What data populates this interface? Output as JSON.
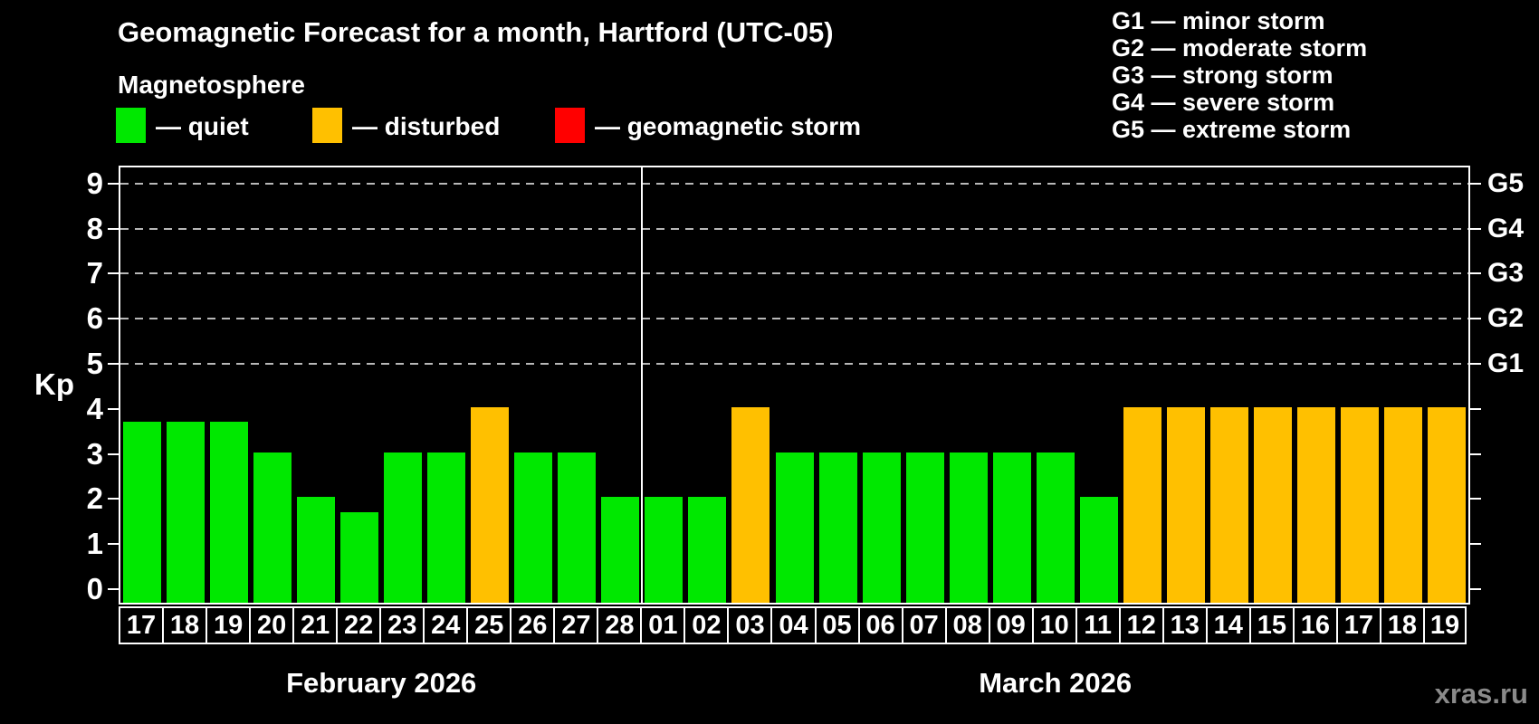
{
  "title": "Geomagnetic Forecast for a month, Hartford (UTC-05)",
  "subtitle": "Magnetosphere",
  "legend": {
    "items": [
      {
        "name": "quiet",
        "label": "— quiet",
        "color": "#00e800"
      },
      {
        "name": "disturbed",
        "label": "— disturbed",
        "color": "#ffc000"
      },
      {
        "name": "geomagnetic-storm",
        "label": "— geomagnetic storm",
        "color": "#ff0000"
      }
    ]
  },
  "g_scale_legend": {
    "lines": [
      "G1 — minor storm",
      "G2 — moderate storm",
      "G3 — strong storm",
      "G4 — severe storm",
      "G5 — extreme storm"
    ]
  },
  "watermark": "xras.ru",
  "chart_data": {
    "type": "bar",
    "title": "Geomagnetic Forecast for a month, Hartford (UTC-05)",
    "ylabel": "Kp",
    "xlabel": "",
    "ylim": [
      -0.35,
      9.4
    ],
    "y_ticks": [
      0,
      1,
      2,
      3,
      4,
      5,
      6,
      7,
      8,
      9
    ],
    "gridlines_at_kp": [
      5,
      6,
      7,
      8,
      9
    ],
    "grid_style": "dashed horizontal, Kp 5 through 9 only",
    "right_axis_labels": [
      {
        "label": "G1",
        "kp": 5
      },
      {
        "label": "G2",
        "kp": 6
      },
      {
        "label": "G3",
        "kp": 7
      },
      {
        "label": "G4",
        "kp": 8
      },
      {
        "label": "G5",
        "kp": 9
      }
    ],
    "status_colors": {
      "quiet": "#00e800",
      "disturbed": "#ffc000",
      "storm": "#ff0000"
    },
    "months": [
      {
        "name": "February 2026",
        "bars": [
          {
            "day": "17",
            "kp": 3.67,
            "status": "quiet"
          },
          {
            "day": "18",
            "kp": 3.67,
            "status": "quiet"
          },
          {
            "day": "19",
            "kp": 3.67,
            "status": "quiet"
          },
          {
            "day": "20",
            "kp": 3,
            "status": "quiet"
          },
          {
            "day": "21",
            "kp": 2,
            "status": "quiet"
          },
          {
            "day": "22",
            "kp": 1.67,
            "status": "quiet"
          },
          {
            "day": "23",
            "kp": 3,
            "status": "quiet"
          },
          {
            "day": "24",
            "kp": 3,
            "status": "quiet"
          },
          {
            "day": "25",
            "kp": 4,
            "status": "disturbed"
          },
          {
            "day": "26",
            "kp": 3,
            "status": "quiet"
          },
          {
            "day": "27",
            "kp": 3,
            "status": "quiet"
          },
          {
            "day": "28",
            "kp": 2,
            "status": "quiet"
          }
        ]
      },
      {
        "name": "March 2026",
        "bars": [
          {
            "day": "01",
            "kp": 2,
            "status": "quiet"
          },
          {
            "day": "02",
            "kp": 2,
            "status": "quiet"
          },
          {
            "day": "03",
            "kp": 4,
            "status": "disturbed"
          },
          {
            "day": "04",
            "kp": 3,
            "status": "quiet"
          },
          {
            "day": "05",
            "kp": 3,
            "status": "quiet"
          },
          {
            "day": "06",
            "kp": 3,
            "status": "quiet"
          },
          {
            "day": "07",
            "kp": 3,
            "status": "quiet"
          },
          {
            "day": "08",
            "kp": 3,
            "status": "quiet"
          },
          {
            "day": "09",
            "kp": 3,
            "status": "quiet"
          },
          {
            "day": "10",
            "kp": 3,
            "status": "quiet"
          },
          {
            "day": "11",
            "kp": 2,
            "status": "quiet"
          },
          {
            "day": "12",
            "kp": 4,
            "status": "disturbed"
          },
          {
            "day": "13",
            "kp": 4,
            "status": "disturbed"
          },
          {
            "day": "14",
            "kp": 4,
            "status": "disturbed"
          },
          {
            "day": "15",
            "kp": 4,
            "status": "disturbed"
          },
          {
            "day": "16",
            "kp": 4,
            "status": "disturbed"
          },
          {
            "day": "17",
            "kp": 4,
            "status": "disturbed"
          },
          {
            "day": "18",
            "kp": 4,
            "status": "disturbed"
          },
          {
            "day": "19",
            "kp": 4,
            "status": "disturbed"
          }
        ]
      }
    ]
  }
}
